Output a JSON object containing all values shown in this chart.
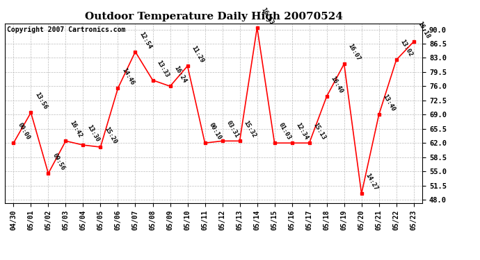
{
  "title": "Outdoor Temperature Daily High 20070524",
  "copyright": "Copyright 2007 Cartronics.com",
  "dates": [
    "04/30",
    "05/01",
    "05/02",
    "05/03",
    "05/04",
    "05/05",
    "05/06",
    "05/07",
    "05/08",
    "05/09",
    "05/10",
    "05/11",
    "05/12",
    "05/13",
    "05/14",
    "05/15",
    "05/16",
    "05/17",
    "05/18",
    "05/19",
    "05/20",
    "05/21",
    "05/22",
    "05/23"
  ],
  "values": [
    62.0,
    69.5,
    54.5,
    62.5,
    61.5,
    61.0,
    75.5,
    84.5,
    77.5,
    76.0,
    81.0,
    62.0,
    62.5,
    62.5,
    90.5,
    62.0,
    62.0,
    62.0,
    73.5,
    81.5,
    49.5,
    69.0,
    82.5,
    87.0
  ],
  "annotations": [
    "00:00",
    "13:56",
    "09:56",
    "16:42",
    "13:30",
    "15:20",
    "14:46",
    "12:54",
    "13:33",
    "16:24",
    "11:29",
    "00:10",
    "03:31",
    "15:32",
    "16:13",
    "01:03",
    "12:34",
    "15:13",
    "16:40",
    "16:07",
    "14:27",
    "13:40",
    "13:02",
    "16:18"
  ],
  "ylim": [
    47.25,
    91.5
  ],
  "yticks": [
    48.0,
    51.5,
    55.0,
    58.5,
    62.0,
    65.5,
    69.0,
    72.5,
    76.0,
    79.5,
    83.0,
    86.5,
    90.0
  ],
  "line_color": "red",
  "marker_color": "red",
  "grid_color": "#bbbbbb",
  "background_color": "#ffffff",
  "title_fontsize": 11,
  "annotation_fontsize": 6.5,
  "copyright_fontsize": 7
}
